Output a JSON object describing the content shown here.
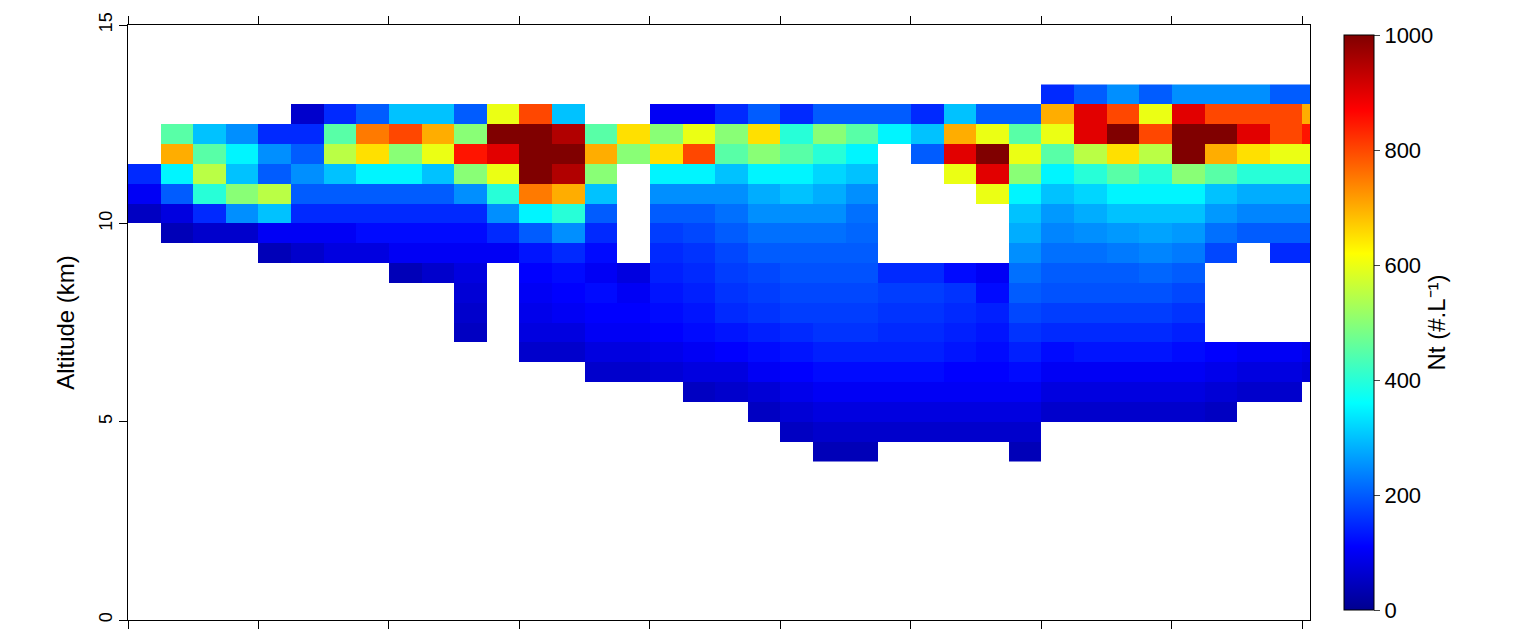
{
  "chart_data": {
    "type": "heatmap",
    "y_label": "Altitude (km)",
    "colorbar_title": "Nt (#.L⁻¹)",
    "tick_labels": "y",
    "xlim": [
      0,
      9.06
    ],
    "xticks": [
      0,
      1,
      2,
      3,
      4,
      5,
      6,
      7,
      8,
      9
    ],
    "ylim": [
      0,
      15
    ],
    "yticks": [
      0,
      5,
      10,
      15
    ],
    "zlim": [
      0,
      1000
    ],
    "zticks": [
      0,
      200,
      400,
      600,
      800,
      1000
    ],
    "x": [
      0.125,
      0.375,
      0.625,
      0.875,
      1.125,
      1.375,
      1.625,
      1.875,
      2.125,
      2.375,
      2.625,
      2.875,
      3.125,
      3.375,
      3.625,
      3.875,
      4.125,
      4.375,
      4.625,
      4.875,
      5.125,
      5.375,
      5.625,
      5.875,
      6.125,
      6.375,
      6.625,
      6.875,
      7.125,
      7.375,
      7.625,
      7.875,
      8.125,
      8.375,
      8.625,
      8.875,
      9.125
    ],
    "y": [
      4.25,
      4.75,
      5.25,
      5.75,
      6.25,
      6.75,
      7.25,
      7.75,
      8.25,
      8.75,
      9.25,
      9.75,
      10.25,
      10.75,
      11.25,
      11.75,
      12.25,
      12.75,
      13.25
    ],
    "z_by_x": [
      [
        null,
        null,
        null,
        null,
        null,
        null,
        null,
        null,
        null,
        null,
        null,
        null,
        50,
        100,
        150,
        null,
        null,
        null,
        null
      ],
      [
        null,
        null,
        null,
        null,
        null,
        null,
        null,
        null,
        null,
        null,
        null,
        40,
        80,
        200,
        350,
        700,
        450,
        null,
        null
      ],
      [
        null,
        null,
        null,
        null,
        null,
        null,
        null,
        null,
        null,
        null,
        null,
        60,
        150,
        400,
        550,
        450,
        300,
        null,
        null
      ],
      [
        null,
        null,
        null,
        null,
        null,
        null,
        null,
        null,
        null,
        null,
        null,
        60,
        250,
        500,
        300,
        350,
        250,
        null,
        null
      ],
      [
        null,
        null,
        null,
        null,
        null,
        null,
        null,
        null,
        null,
        null,
        40,
        100,
        300,
        550,
        200,
        250,
        150,
        null,
        null
      ],
      [
        null,
        null,
        null,
        null,
        null,
        null,
        null,
        null,
        null,
        null,
        60,
        100,
        150,
        200,
        250,
        200,
        150,
        60,
        null
      ],
      [
        null,
        null,
        null,
        null,
        null,
        null,
        null,
        null,
        null,
        null,
        80,
        100,
        150,
        200,
        300,
        550,
        450,
        150,
        null
      ],
      [
        null,
        null,
        null,
        null,
        null,
        null,
        null,
        null,
        null,
        null,
        80,
        120,
        150,
        200,
        350,
        650,
        750,
        200,
        null
      ],
      [
        null,
        null,
        null,
        null,
        null,
        null,
        null,
        null,
        null,
        40,
        100,
        120,
        150,
        200,
        350,
        500,
        800,
        300,
        null
      ],
      [
        null,
        null,
        null,
        null,
        null,
        null,
        null,
        null,
        null,
        60,
        100,
        120,
        150,
        200,
        300,
        600,
        700,
        300,
        null
      ],
      [
        null,
        null,
        null,
        null,
        null,
        null,
        50,
        60,
        70,
        80,
        100,
        120,
        150,
        250,
        500,
        850,
        500,
        200,
        null
      ],
      [
        null,
        null,
        null,
        null,
        null,
        null,
        null,
        null,
        null,
        null,
        100,
        150,
        250,
        400,
        600,
        900,
        1000,
        600,
        null
      ],
      [
        null,
        null,
        null,
        null,
        null,
        60,
        80,
        90,
        100,
        110,
        130,
        200,
        350,
        750,
        1000,
        1000,
        1000,
        800,
        null
      ],
      [
        null,
        null,
        null,
        null,
        null,
        60,
        80,
        100,
        110,
        120,
        150,
        250,
        400,
        700,
        950,
        1000,
        950,
        300,
        null
      ],
      [
        null,
        null,
        null,
        null,
        60,
        80,
        100,
        110,
        120,
        100,
        120,
        150,
        200,
        300,
        500,
        700,
        450,
        null,
        null
      ],
      [
        null,
        null,
        null,
        null,
        60,
        80,
        100,
        110,
        100,
        80,
        null,
        null,
        null,
        null,
        null,
        500,
        650,
        null,
        null
      ],
      [
        null,
        null,
        null,
        null,
        70,
        90,
        110,
        120,
        130,
        140,
        150,
        170,
        200,
        250,
        350,
        650,
        500,
        100,
        null
      ],
      [
        null,
        null,
        null,
        50,
        80,
        100,
        120,
        130,
        140,
        150,
        160,
        180,
        200,
        250,
        350,
        800,
        600,
        100,
        null
      ],
      [
        null,
        null,
        null,
        60,
        80,
        110,
        130,
        150,
        160,
        170,
        180,
        200,
        220,
        250,
        300,
        450,
        500,
        150,
        null
      ],
      [
        null,
        null,
        50,
        70,
        100,
        120,
        140,
        160,
        170,
        180,
        200,
        220,
        250,
        280,
        350,
        500,
        650,
        200,
        null
      ],
      [
        null,
        50,
        70,
        90,
        110,
        130,
        150,
        170,
        180,
        190,
        200,
        220,
        250,
        300,
        350,
        450,
        400,
        150,
        null
      ],
      [
        40,
        60,
        80,
        100,
        120,
        140,
        160,
        170,
        180,
        190,
        200,
        220,
        250,
        280,
        320,
        400,
        500,
        200,
        null
      ],
      [
        40,
        60,
        80,
        100,
        120,
        140,
        160,
        170,
        180,
        190,
        200,
        210,
        220,
        250,
        300,
        350,
        450,
        200,
        null
      ],
      [
        null,
        60,
        80,
        100,
        120,
        140,
        150,
        160,
        170,
        150,
        null,
        null,
        null,
        null,
        null,
        null,
        350,
        200,
        null
      ],
      [
        null,
        60,
        80,
        100,
        120,
        140,
        150,
        160,
        170,
        150,
        null,
        null,
        null,
        null,
        null,
        200,
        300,
        150,
        null
      ],
      [
        null,
        60,
        80,
        100,
        110,
        130,
        140,
        150,
        160,
        120,
        null,
        null,
        null,
        null,
        600,
        900,
        700,
        300,
        null
      ],
      [
        null,
        60,
        80,
        100,
        110,
        120,
        130,
        140,
        120,
        100,
        null,
        null,
        null,
        600,
        900,
        1000,
        600,
        200,
        null
      ],
      [
        40,
        60,
        80,
        100,
        120,
        140,
        160,
        180,
        200,
        220,
        250,
        280,
        300,
        350,
        500,
        600,
        450,
        200,
        null
      ],
      [
        null,
        null,
        60,
        80,
        100,
        120,
        150,
        170,
        190,
        200,
        220,
        240,
        260,
        300,
        350,
        450,
        600,
        700,
        150
      ],
      [
        null,
        null,
        60,
        80,
        100,
        130,
        150,
        170,
        190,
        200,
        220,
        250,
        280,
        320,
        400,
        550,
        900,
        900,
        200
      ],
      [
        null,
        null,
        60,
        80,
        100,
        130,
        150,
        170,
        190,
        200,
        230,
        260,
        300,
        350,
        450,
        650,
        1000,
        800,
        250
      ],
      [
        null,
        null,
        60,
        80,
        100,
        130,
        150,
        170,
        190,
        210,
        240,
        270,
        300,
        350,
        400,
        550,
        800,
        600,
        200
      ],
      [
        null,
        null,
        60,
        80,
        100,
        120,
        140,
        160,
        180,
        200,
        230,
        260,
        300,
        350,
        500,
        1000,
        1000,
        900,
        250
      ],
      [
        null,
        null,
        50,
        70,
        90,
        110,
        null,
        null,
        null,
        null,
        180,
        220,
        260,
        300,
        450,
        700,
        1000,
        800,
        250
      ],
      [
        null,
        null,
        null,
        60,
        80,
        100,
        null,
        null,
        null,
        null,
        null,
        200,
        240,
        280,
        400,
        650,
        900,
        800,
        250
      ],
      [
        null,
        null,
        null,
        60,
        80,
        100,
        null,
        null,
        null,
        null,
        150,
        200,
        240,
        280,
        400,
        600,
        800,
        800,
        200
      ],
      [
        null,
        null,
        null,
        null,
        70,
        90,
        null,
        null,
        null,
        null,
        150,
        200,
        240,
        280,
        400,
        600,
        850,
        700,
        200
      ]
    ]
  }
}
